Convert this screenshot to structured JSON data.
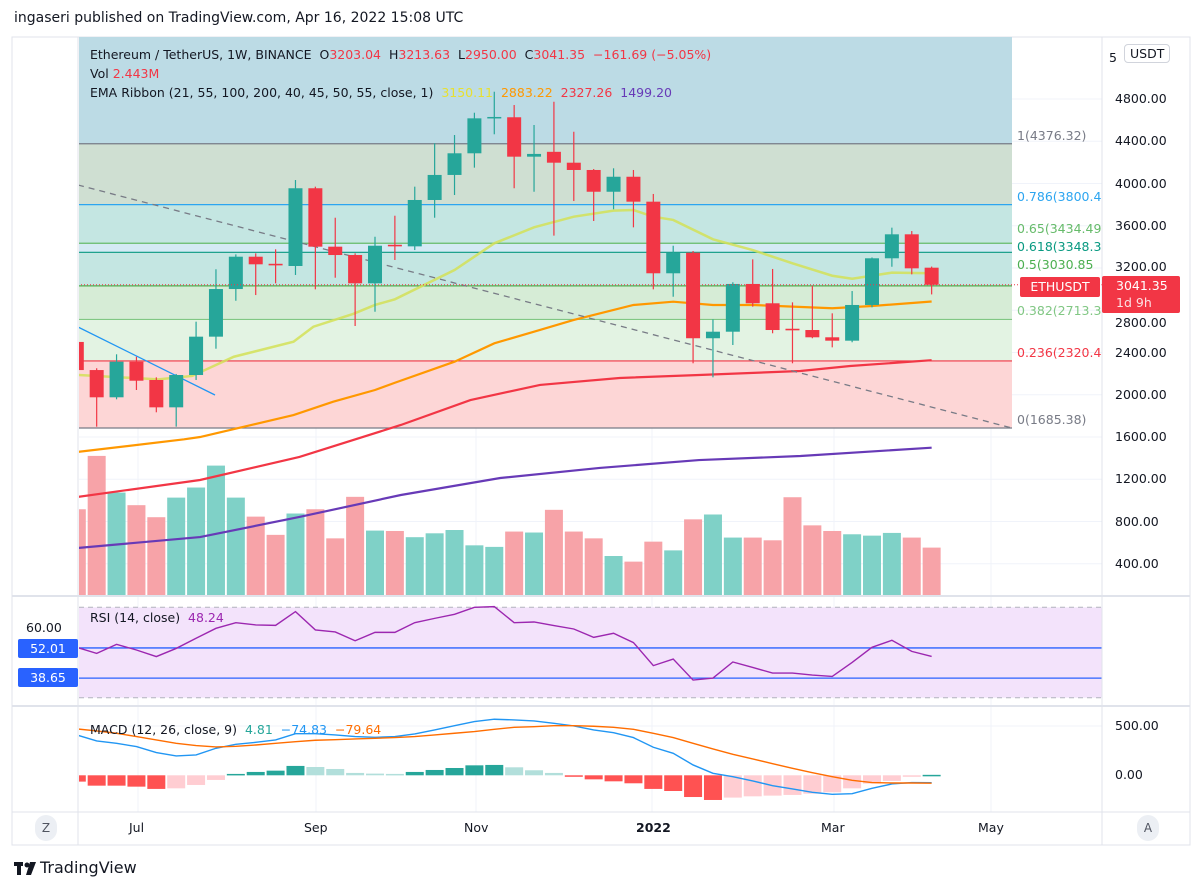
{
  "header": {
    "publish_line": "ingaseri published on TradingView.com, Apr 16, 2022 15:08 UTC"
  },
  "footer": {
    "logo_text": "TradingView"
  },
  "symbol": {
    "title": "Ethereum / TetherUS, 1W, BINANCE",
    "o_label": "O",
    "o": "3203.04",
    "h_label": "H",
    "h": "3213.63",
    "l_label": "L",
    "l": "2950.00",
    "c_label": "C",
    "c": "3041.35",
    "change": "−161.69 (−5.05%)",
    "vol_label": "Vol",
    "vol": "2.443M",
    "ema_label": "EMA Ribbon (21, 55, 100, 200, 40, 45, 50, 55, close, 1)",
    "ema_values": [
      "3150.11",
      "2883.22",
      "2327.26",
      "1499.20"
    ],
    "ticker_tag": "ETHUSDT",
    "price_tag": "3041.35",
    "countdown": "1d 9h",
    "currency_button": "USDT",
    "axis_top_partial": "5"
  },
  "colors": {
    "up": "#26a69a",
    "down": "#f23645",
    "vol_up": "#7fd1c7",
    "vol_down": "#f7a3a8",
    "ema": [
      "#d4e157",
      "#ff9800",
      "#f23645",
      "#673ab7"
    ],
    "ema_text": [
      "#e8e030",
      "#ff9800",
      "#f23645",
      "#673ab7"
    ],
    "rsi": "#9c27b0",
    "rsi_band": "#f3e3fb",
    "hline": "#2962ff",
    "macd": "#2196f3",
    "signal": "#ff6d00",
    "hist": [
      "#26a69a",
      "#b2dfdb",
      "#ffcdd2",
      "#ff5252"
    ]
  },
  "fib": [
    {
      "level": 1,
      "price": 4376.32,
      "label": "1(4376.32)",
      "color": "#787b86",
      "zone": "#cfdfd2"
    },
    {
      "level": 0.786,
      "price": 3800.4,
      "label": "0.786(3800.4",
      "color": "#2ca5f0",
      "zone": "#c4e6e2"
    },
    {
      "level": 0.65,
      "price": 3434.49,
      "label": "0.65(3434.49",
      "color": "#66bb6a",
      "zone": "#d4eaf4"
    },
    {
      "level": 0.618,
      "price": 3348.37,
      "label": "0.618(3348.3",
      "color": "#089981",
      "zone": "#c4e6e2"
    },
    {
      "level": 0.5,
      "price": 3030.85,
      "label": "0.5(3030.85",
      "color": "#4caf50",
      "zone": "#d6ecd6"
    },
    {
      "level": 0.382,
      "price": 2713.33,
      "label": "0.382(2713.3",
      "color": "#81c784",
      "zone": "#e3f3e3"
    },
    {
      "level": 0.236,
      "price": 2320.45,
      "label": "0.236(2320.4",
      "color": "#f23645",
      "zone": "#fdd6d6"
    },
    {
      "level": 0,
      "price": 1685.38,
      "label": "0(1685.38)",
      "color": "#787b86",
      "zone": null
    }
  ],
  "fib_above_zone": "#bcdbe5",
  "price_axis": [
    "4800.00",
    "4400.00",
    "4000.00",
    "3600.00",
    "3200.00",
    "2800.00",
    "2400.00",
    "2000.00",
    "1600.00",
    "1200.00",
    "800.00",
    "400.00"
  ],
  "time_axis": [
    "Jul",
    "Sep",
    "Nov",
    "2022",
    "Mar",
    "May"
  ],
  "scale_buttons": {
    "left": "Z",
    "right": "A"
  },
  "rsi": {
    "label": "RSI (14, close)",
    "value": "48.24",
    "axis": "60.00",
    "hlines": [
      "52.01",
      "38.65"
    ],
    "bands": [
      70,
      30
    ]
  },
  "macd": {
    "label": "MACD (12, 26, close, 9)",
    "values": [
      "4.81",
      "−74.83",
      "−79.64"
    ],
    "axis": [
      "500.00",
      "0.00"
    ]
  },
  "chart_data": {
    "type": "candlestick",
    "interval": "1W",
    "ylim": [
      1600,
      4800
    ],
    "candles_ohlc": [
      [
        2500,
        2510,
        2200,
        2234
      ],
      [
        2234,
        2251,
        1698,
        1976
      ],
      [
        1976,
        2383,
        1957,
        2313
      ],
      [
        2313,
        2360,
        2045,
        2133
      ],
      [
        2140,
        2165,
        1834,
        1881
      ],
      [
        1881,
        2197,
        1698,
        2187
      ],
      [
        2187,
        2692,
        2140,
        2550
      ],
      [
        2550,
        3188,
        2436,
        3001
      ],
      [
        3001,
        3329,
        2890,
        3307
      ],
      [
        3307,
        3339,
        2944,
        3235
      ],
      [
        3240,
        3377,
        3055,
        3225
      ],
      [
        3219,
        4033,
        3134,
        3955
      ],
      [
        3955,
        3970,
        2998,
        3402
      ],
      [
        3402,
        3676,
        3108,
        3323
      ],
      [
        3323,
        3339,
        2651,
        3055
      ],
      [
        3055,
        3496,
        2786,
        3411
      ],
      [
        3420,
        3695,
        3276,
        3405
      ],
      [
        3405,
        3970,
        3370,
        3844
      ],
      [
        3844,
        4381,
        3676,
        4081
      ],
      [
        4081,
        4459,
        3891,
        4286
      ],
      [
        4286,
        4670,
        4150,
        4617
      ],
      [
        4617,
        4869,
        4466,
        4630
      ],
      [
        4627,
        4743,
        3955,
        4254
      ],
      [
        4254,
        4554,
        3922,
        4280
      ],
      [
        4300,
        4774,
        3506,
        4197
      ],
      [
        4197,
        4490,
        3834,
        4128
      ],
      [
        4128,
        4137,
        3645,
        3922
      ],
      [
        3922,
        4144,
        3756,
        4064
      ],
      [
        4064,
        4128,
        3585,
        3828
      ],
      [
        3828,
        3901,
        2998,
        3150
      ],
      [
        3150,
        3411,
        2928,
        3345
      ],
      [
        3345,
        3361,
        2298,
        2535
      ],
      [
        2535,
        2714,
        2165,
        2597
      ],
      [
        2597,
        3065,
        2471,
        3049
      ],
      [
        3049,
        3282,
        2834,
        2866
      ],
      [
        2866,
        3191,
        2582,
        2613
      ],
      [
        2625,
        2875,
        2298,
        2610
      ],
      [
        2613,
        3033,
        2535,
        2544
      ],
      [
        2544,
        2771,
        2449,
        2512
      ],
      [
        2512,
        2982,
        2497,
        2850
      ],
      [
        2850,
        3300,
        2828,
        3292
      ],
      [
        3292,
        3582,
        3212,
        3519
      ],
      [
        3519,
        3550,
        3140,
        3197
      ],
      [
        3203.04,
        3213.63,
        2950.0,
        3041.35
      ]
    ],
    "volume_millions": [
      4.42,
      7.17,
      5.28,
      4.63,
      4.01,
      5.02,
      5.54,
      6.67,
      5.02,
      4.04,
      3.1,
      4.2,
      4.42,
      2.92,
      5.06,
      3.32,
      3.3,
      2.98,
      3.18,
      3.35,
      2.56,
      2.48,
      3.27,
      3.22,
      4.39,
      3.27,
      2.92,
      2.01,
      1.72,
      2.75,
      2.3,
      3.9,
      4.15,
      2.96,
      2.96,
      2.82,
      5.04,
      3.59,
      3.3,
      3.13,
      3.06,
      3.2,
      2.96,
      2.443
    ],
    "ema": [
      {
        "period": 21,
        "points": [
          [
            0.1,
            2187
          ],
          [
            4.1,
            2146
          ],
          [
            5.8,
            2178
          ],
          [
            7.9,
            2360
          ],
          [
            10.9,
            2502
          ],
          [
            11.9,
            2644
          ],
          [
            13.9,
            2765
          ],
          [
            15,
            2850
          ],
          [
            16,
            2904
          ],
          [
            19,
            3181
          ],
          [
            21,
            3434
          ],
          [
            23,
            3585
          ],
          [
            25,
            3686
          ],
          [
            27,
            3743
          ],
          [
            28,
            3749
          ],
          [
            29,
            3686
          ],
          [
            30,
            3655
          ],
          [
            32,
            3472
          ],
          [
            34,
            3370
          ],
          [
            36,
            3245
          ],
          [
            38,
            3127
          ],
          [
            39,
            3099
          ],
          [
            41,
            3156
          ],
          [
            43,
            3150.11
          ]
        ]
      },
      {
        "period": 55,
        "points": [
          [
            0,
            1458
          ],
          [
            5.4,
            1578
          ],
          [
            6.2,
            1600
          ],
          [
            10.9,
            1808
          ],
          [
            12.9,
            1934
          ],
          [
            15,
            2045
          ],
          [
            16,
            2114
          ],
          [
            19,
            2313
          ],
          [
            21,
            2487
          ],
          [
            23,
            2597
          ],
          [
            25,
            2708
          ],
          [
            28,
            2850
          ],
          [
            30,
            2881
          ],
          [
            32,
            2850
          ],
          [
            34,
            2850
          ],
          [
            38,
            2819
          ],
          [
            40,
            2840
          ],
          [
            43,
            2883.22
          ]
        ]
      },
      {
        "period": 100,
        "points": [
          [
            0,
            1032
          ],
          [
            6.2,
            1193
          ],
          [
            11.2,
            1411
          ],
          [
            16.3,
            1714
          ],
          [
            19.8,
            1950
          ],
          [
            23.3,
            2093
          ],
          [
            27.3,
            2159
          ],
          [
            31.3,
            2187
          ],
          [
            36.4,
            2225
          ],
          [
            38.9,
            2272
          ],
          [
            43,
            2327.26
          ]
        ]
      },
      {
        "period": 200,
        "points": [
          [
            0,
            549
          ],
          [
            6.2,
            653
          ],
          [
            11.2,
            843
          ],
          [
            16.3,
            1051
          ],
          [
            21.3,
            1212
          ],
          [
            26.3,
            1307
          ],
          [
            31.3,
            1382
          ],
          [
            36.4,
            1420
          ],
          [
            43,
            1499.2
          ]
        ]
      }
    ],
    "rsi": [
      52.3,
      49.6,
      53.6,
      51.1,
      48.2,
      51.8,
      56.3,
      60.7,
      63.2,
      62.2,
      62.0,
      68.1,
      60.0,
      59.1,
      55.2,
      58.9,
      58.9,
      63.2,
      65.1,
      66.9,
      70.0,
      70.3,
      63.2,
      63.5,
      61.9,
      60.4,
      56.7,
      58.5,
      54.4,
      44.2,
      47.1,
      37.8,
      38.7,
      45.8,
      43.4,
      40.9,
      40.9,
      40.0,
      39.4,
      45.6,
      52.3,
      55.4,
      50.5,
      48.24
    ],
    "macd_line": [
      409,
      348,
      324,
      291,
      230,
      196,
      206,
      274,
      314,
      334,
      358,
      422,
      422,
      409,
      392,
      385,
      392,
      419,
      459,
      503,
      544,
      568,
      561,
      551,
      527,
      500,
      459,
      432,
      382,
      284,
      223,
      105,
      20,
      -14,
      -57,
      -105,
      -138,
      -172,
      -193,
      -186,
      -132,
      -88,
      -74,
      -74.83
    ],
    "signal_line": [
      470,
      449,
      426,
      392,
      358,
      324,
      301,
      287,
      294,
      307,
      324,
      341,
      355,
      361,
      368,
      375,
      382,
      392,
      409,
      426,
      443,
      466,
      486,
      493,
      503,
      503,
      497,
      486,
      466,
      426,
      382,
      324,
      267,
      213,
      166,
      118,
      71,
      27,
      -14,
      -51,
      -74,
      -78,
      -78,
      -79.64
    ],
    "histogram": [
      -64,
      -105,
      -105,
      -115,
      -138,
      -132,
      -98,
      -47,
      14,
      34,
      47,
      95,
      84,
      64,
      24,
      17,
      14,
      34,
      54,
      74,
      101,
      105,
      81,
      51,
      24,
      -7,
      -41,
      -61,
      -81,
      -138,
      -159,
      -220,
      -250,
      -226,
      -213,
      -206,
      -199,
      -186,
      -172,
      -132,
      -84,
      -57,
      -14,
      4.81
    ]
  }
}
